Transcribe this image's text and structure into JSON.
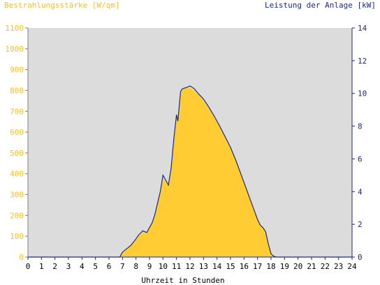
{
  "chart_data": {
    "type": "area",
    "left_title": "Bestrahlungsstärke [W/qm]",
    "right_title": "Leistung der Anlage [kW]",
    "xlabel": "Uhrzeit in Stunden",
    "x_ticks": [
      "0",
      "1",
      "2",
      "3",
      "4",
      "5",
      "6",
      "7",
      "8",
      "9",
      "10",
      "11",
      "12",
      "13",
      "14",
      "15",
      "16",
      "17",
      "18",
      "19",
      "20",
      "21",
      "22",
      "23",
      "24"
    ],
    "y_left_ticks": [
      "0",
      "100",
      "200",
      "300",
      "400",
      "500",
      "600",
      "700",
      "800",
      "900",
      "1000",
      "1100"
    ],
    "y_right_ticks": [
      "0",
      "2",
      "4",
      "6",
      "8",
      "10",
      "12",
      "14"
    ],
    "xlim": [
      0,
      24
    ],
    "ylim_left": [
      0,
      1100
    ],
    "ylim_right": [
      0,
      14
    ],
    "grid": false,
    "colors": {
      "plot_background": "#dcdcdc",
      "irradiance_fill": "#ffcc33",
      "power_line": "#1a2a8a",
      "left_axis_text": "#f4c01e",
      "right_axis_text": "#1a2a8a",
      "title_text": "#000000"
    },
    "series": [
      {
        "kind": "irradiance",
        "axis": "left",
        "x": [
          0,
          6.8,
          7.0,
          7.3,
          7.6,
          7.9,
          8.2,
          8.5,
          8.8,
          9.0,
          9.2,
          9.4,
          9.6,
          9.8,
          10.0,
          10.2,
          10.4,
          10.6,
          10.8,
          11.0,
          11.1,
          11.2,
          11.3,
          11.4,
          11.5,
          11.7,
          12.0,
          12.3,
          12.6,
          13.0,
          13.4,
          13.8,
          14.2,
          14.6,
          15.0,
          15.4,
          15.8,
          16.2,
          16.6,
          17.0,
          17.2,
          17.4,
          17.6,
          17.8,
          18.0,
          18.2,
          18.4,
          24
        ],
        "values": [
          0,
          0,
          20,
          35,
          55,
          75,
          100,
          120,
          115,
          140,
          165,
          200,
          260,
          310,
          380,
          360,
          340,
          420,
          560,
          680,
          650,
          720,
          790,
          800,
          805,
          810,
          812,
          800,
          780,
          750,
          710,
          670,
          620,
          570,
          520,
          460,
          390,
          320,
          250,
          180,
          150,
          140,
          120,
          60,
          15,
          3,
          0,
          0
        ]
      },
      {
        "kind": "power",
        "axis": "right",
        "x": [
          0,
          6.8,
          7.0,
          7.3,
          7.6,
          7.9,
          8.2,
          8.5,
          8.8,
          9.0,
          9.2,
          9.4,
          9.6,
          9.8,
          10.0,
          10.2,
          10.4,
          10.6,
          10.8,
          11.0,
          11.1,
          11.2,
          11.3,
          11.4,
          11.5,
          11.7,
          12.0,
          12.3,
          12.6,
          13.0,
          13.4,
          13.8,
          14.2,
          14.6,
          15.0,
          15.4,
          15.8,
          16.2,
          16.6,
          17.0,
          17.2,
          17.4,
          17.6,
          17.8,
          18.0,
          18.2,
          18.4,
          24
        ],
        "values": [
          0,
          0,
          0.3,
          0.5,
          0.7,
          1.0,
          1.35,
          1.6,
          1.5,
          1.8,
          2.1,
          2.6,
          3.3,
          4.0,
          5.0,
          4.7,
          4.4,
          5.4,
          7.2,
          8.7,
          8.3,
          9.2,
          10.1,
          10.25,
          10.3,
          10.35,
          10.45,
          10.3,
          10.0,
          9.65,
          9.15,
          8.6,
          8.0,
          7.35,
          6.7,
          5.9,
          5.0,
          4.1,
          3.2,
          2.3,
          1.95,
          1.8,
          1.55,
          0.8,
          0.2,
          0.05,
          0,
          0
        ]
      }
    ]
  }
}
